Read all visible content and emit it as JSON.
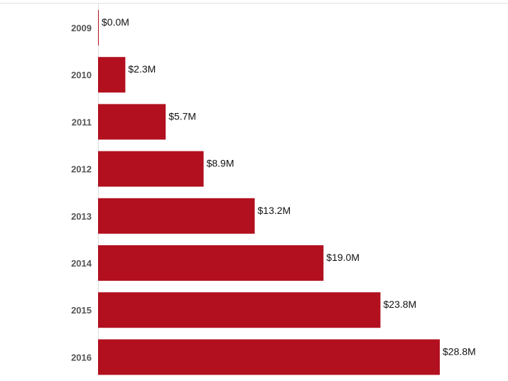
{
  "chart_data": {
    "type": "bar",
    "orientation": "horizontal",
    "categories": [
      "2009",
      "2010",
      "2011",
      "2012",
      "2013",
      "2014",
      "2015",
      "2016"
    ],
    "values": [
      0.0,
      2.3,
      5.7,
      8.9,
      13.2,
      19.0,
      23.8,
      28.8
    ],
    "value_labels": [
      "$0.0M",
      "$2.3M",
      "$5.7M",
      "$8.9M",
      "$13.2M",
      "$19.0M",
      "$23.8M",
      "$28.8M"
    ],
    "unit": "M",
    "title": "",
    "xlabel": "",
    "ylabel": "",
    "xlim": [
      0,
      31.5
    ],
    "grid": false,
    "legend": "none",
    "colors": {
      "bar": "#b2101f",
      "axis_line": "#dddddd",
      "top_border": "#e2e2e2",
      "category_text": "#555555",
      "value_text": "#111111"
    }
  }
}
